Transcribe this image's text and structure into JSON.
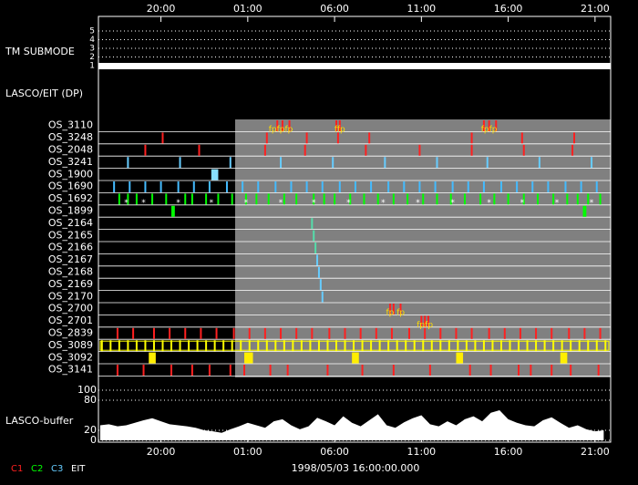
{
  "chart_data": {
    "type": "timeline",
    "xlim": [
      16.4,
      45.9
    ],
    "xticks": [
      {
        "value": 20,
        "label": "20:00"
      },
      {
        "value": 25,
        "label": "01:00"
      },
      {
        "value": 30,
        "label": "06:00"
      },
      {
        "value": 35,
        "label": "11:00"
      },
      {
        "value": 40,
        "label": "16:00"
      },
      {
        "value": 45,
        "label": "21:00"
      }
    ],
    "date": "1998/05/03 16:00:00.000",
    "tm_submode": {
      "label": "TM SUBMODE",
      "levels": [
        5,
        4,
        3,
        2,
        1
      ],
      "value": 1
    },
    "section_label": "LASCO/EIT (DP)",
    "rows": [
      {
        "name": "OS_3110",
        "color": "#ff2020",
        "events": [
          26.7,
          27.0,
          27.4,
          30.1,
          30.3,
          38.6,
          38.9,
          39.3
        ],
        "labels": [
          {
            "t": 26.9,
            "text": "fpfpfp"
          },
          {
            "t": 30.3,
            "text": "ffp"
          },
          {
            "t": 38.9,
            "text": "fpfp"
          }
        ]
      },
      {
        "name": "OS_3248",
        "color": "#ff2020",
        "events": [
          20.1,
          26.1,
          28.4,
          30.2,
          32.0,
          37.9,
          40.8,
          43.8
        ]
      },
      {
        "name": "OS_2048",
        "color": "#ff2020",
        "events": [
          19.1,
          22.2,
          26.0,
          28.3,
          31.8,
          34.9,
          37.9,
          40.9,
          43.7
        ]
      },
      {
        "name": "OS_3241",
        "color": "#66ccff",
        "events": [
          18.1,
          21.1,
          24.0,
          26.9,
          29.9,
          32.9,
          35.9,
          38.8,
          41.8,
          44.8
        ]
      },
      {
        "name": "OS_1900",
        "color": "#88e0ff",
        "events": [
          [
            22.9,
            23.3
          ]
        ]
      },
      {
        "name": "OS_1690",
        "color": "#44bbff",
        "events": [
          17.3,
          18.2,
          19.1,
          20.0,
          21.0,
          21.9,
          22.8,
          23.8,
          24.7,
          25.6,
          26.6,
          27.5,
          28.4,
          29.3,
          30.3,
          31.2,
          32.1,
          33.1,
          34.0,
          34.9,
          35.8,
          36.8,
          37.7,
          38.6,
          39.6,
          40.5,
          41.4,
          42.3,
          43.3,
          44.2,
          45.1
        ]
      },
      {
        "name": "OS_1692",
        "color": "#00ff00",
        "events": [
          17.6,
          18.1,
          18.6,
          19.5,
          20.3,
          21.4,
          21.8,
          22.6,
          23.3,
          24.1,
          24.9,
          25.5,
          26.2,
          27.1,
          27.8,
          28.8,
          29.4,
          30.0,
          30.9,
          31.7,
          32.5,
          33.4,
          34.2,
          35.1,
          35.9,
          36.7,
          37.5,
          38.4,
          39.2,
          40.0,
          40.9,
          41.7,
          42.6,
          43.4,
          44.0,
          44.6,
          45.3
        ],
        "labels": [
          {
            "t": 18.0,
            "text": "*"
          },
          {
            "t": 19.0,
            "text": "*"
          },
          {
            "t": 21.0,
            "text": "*"
          },
          {
            "t": 22.9,
            "text": "*"
          },
          {
            "t": 24.9,
            "text": "*"
          },
          {
            "t": 26.9,
            "text": "*"
          },
          {
            "t": 28.8,
            "text": "*"
          },
          {
            "t": 30.8,
            "text": "*"
          },
          {
            "t": 32.8,
            "text": "*"
          },
          {
            "t": 34.8,
            "text": "*"
          },
          {
            "t": 36.8,
            "text": "*"
          },
          {
            "t": 38.9,
            "text": "*"
          },
          {
            "t": 40.8,
            "text": "*"
          },
          {
            "t": 42.8,
            "text": "*"
          },
          {
            "t": 44.8,
            "text": "*"
          }
        ]
      },
      {
        "name": "OS_1899",
        "color": "#00ff00",
        "events": [
          [
            20.6,
            20.8
          ],
          [
            44.3,
            44.5
          ]
        ]
      },
      {
        "name": "OS_2164",
        "color": "#55ddaa",
        "events": [
          28.7
        ]
      },
      {
        "name": "OS_2165",
        "color": "#55ddaa",
        "events": [
          28.8
        ]
      },
      {
        "name": "OS_2166",
        "color": "#55ddaa",
        "events": [
          28.9
        ]
      },
      {
        "name": "OS_2167",
        "color": "#66ccff",
        "events": [
          29.0
        ]
      },
      {
        "name": "OS_2168",
        "color": "#66ccff",
        "events": [
          29.1
        ]
      },
      {
        "name": "OS_2169",
        "color": "#66ccff",
        "events": [
          29.2
        ]
      },
      {
        "name": "OS_2170",
        "color": "#66ccff",
        "events": [
          29.3
        ]
      },
      {
        "name": "OS_2700",
        "color": "#ff2020",
        "events": [
          33.2,
          33.4,
          33.8
        ],
        "labels": [
          {
            "t": 33.5,
            "text": "fp fp"
          }
        ]
      },
      {
        "name": "OS_2701",
        "color": "#ff2020",
        "events": [
          35.0,
          35.2,
          35.4
        ],
        "labels": [
          {
            "t": 35.2,
            "text": "fpfp"
          }
        ]
      },
      {
        "name": "OS_2839",
        "color": "#ff2020",
        "events": [
          17.5,
          18.4,
          19.6,
          20.5,
          21.4,
          22.3,
          23.2,
          24.2,
          25.1,
          26.0,
          26.9,
          27.8,
          28.7,
          29.7,
          30.6,
          31.5,
          32.4,
          33.3,
          34.3,
          35.2,
          36.1,
          37.0,
          37.9,
          38.9,
          39.8,
          40.7,
          41.6,
          42.5,
          43.5,
          44.4,
          45.3
        ]
      },
      {
        "name": "OS_3089",
        "color": "#ffff00",
        "boxed": true,
        "events": [
          16.6,
          17.1,
          17.6,
          18.1,
          18.6,
          19.1,
          19.6,
          20.1,
          20.6,
          21.1,
          21.6,
          22.1,
          22.6,
          23.1,
          23.6,
          24.1,
          24.6,
          25.1,
          25.6,
          26.1,
          26.6,
          27.1,
          27.6,
          28.1,
          28.6,
          29.1,
          29.6,
          30.1,
          30.6,
          31.1,
          31.6,
          32.1,
          32.6,
          33.1,
          33.6,
          34.1,
          34.6,
          35.1,
          35.6,
          36.1,
          36.6,
          37.1,
          37.6,
          38.1,
          38.6,
          39.1,
          39.6,
          40.1,
          40.6,
          41.1,
          41.6,
          42.1,
          42.6,
          43.1,
          43.6,
          44.1,
          44.6,
          45.1,
          45.6
        ]
      },
      {
        "name": "OS_3092",
        "color": "#ffee00",
        "events": [
          [
            19.3,
            19.7
          ],
          [
            24.8,
            25.3
          ],
          [
            31.0,
            31.4
          ],
          [
            37.0,
            37.4
          ],
          [
            43.0,
            43.4
          ]
        ]
      },
      {
        "name": "OS_3141",
        "color": "#ff2020",
        "events": [
          17.5,
          19.0,
          20.6,
          21.8,
          22.8,
          24.0,
          24.8,
          26.3,
          27.3,
          29.6,
          31.6,
          33.4,
          35.5,
          37.8,
          39.0,
          40.6,
          41.3,
          42.5,
          43.6,
          45.2
        ]
      }
    ],
    "buffer": {
      "label": "LASCO-buffer",
      "color": "#ffffff",
      "ylim": [
        0,
        100
      ],
      "yticks": [
        0,
        20,
        80,
        100
      ],
      "x": [
        16.5,
        17,
        17.5,
        18,
        18.5,
        19,
        19.5,
        20,
        20.5,
        21,
        21.5,
        22,
        22.5,
        23,
        23.5,
        24,
        24.5,
        25,
        25.5,
        26,
        26.5,
        27,
        27.5,
        28,
        28.5,
        29,
        29.5,
        30,
        30.5,
        31,
        31.5,
        32,
        32.5,
        33,
        33.5,
        34,
        34.5,
        35,
        35.5,
        36,
        36.5,
        37,
        37.5,
        38,
        38.5,
        39,
        39.5,
        40,
        40.5,
        41,
        41.5,
        42,
        42.5,
        43,
        43.5,
        44,
        44.5,
        45,
        45.5
      ],
      "values": [
        30,
        32,
        28,
        30,
        35,
        40,
        44,
        38,
        32,
        30,
        28,
        25,
        20,
        18,
        15,
        22,
        28,
        35,
        30,
        25,
        38,
        42,
        30,
        22,
        28,
        45,
        38,
        30,
        48,
        35,
        28,
        40,
        52,
        30,
        25,
        36,
        44,
        50,
        32,
        28,
        38,
        30,
        42,
        48,
        38,
        55,
        60,
        42,
        35,
        30,
        28,
        40,
        46,
        35,
        25,
        30,
        22,
        18,
        20
      ]
    },
    "legend": [
      {
        "name": "C1",
        "color": "#ff2020"
      },
      {
        "name": "C2",
        "color": "#00ff00"
      },
      {
        "name": "C3",
        "color": "#66ccff"
      },
      {
        "name": "EIT",
        "color": "#ffffff"
      }
    ]
  }
}
